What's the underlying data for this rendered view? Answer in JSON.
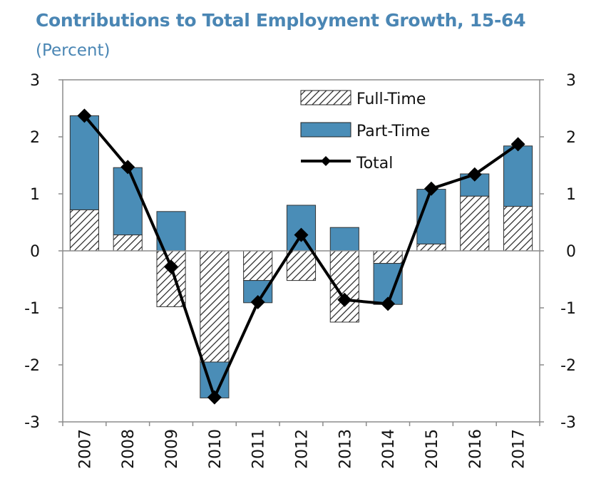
{
  "title": "Contributions to Total Employment Growth, 15-64",
  "subtitle": "(Percent)",
  "colors": {
    "part_time": "#4a8db7",
    "full_time_hatch": "#222222",
    "total_line": "#000000",
    "title": "#4a86b4"
  },
  "chart_data": {
    "type": "bar",
    "stacked": true,
    "categories": [
      "2007",
      "2008",
      "2009",
      "2010",
      "2011",
      "2012",
      "2013",
      "2014",
      "2015",
      "2016",
      "2017"
    ],
    "series": [
      {
        "name": "Full-Time",
        "type": "bar",
        "pattern": "hatch",
        "values": [
          0.72,
          0.28,
          -0.98,
          -1.95,
          -0.52,
          -0.52,
          -1.25,
          -0.22,
          0.12,
          0.96,
          0.78
        ]
      },
      {
        "name": "Part-Time",
        "type": "bar",
        "values": [
          1.65,
          1.18,
          0.69,
          -0.63,
          -0.39,
          0.8,
          0.41,
          -0.72,
          0.96,
          0.39,
          1.06
        ]
      },
      {
        "name": "Total",
        "type": "line",
        "marker": "diamond",
        "values": [
          2.37,
          1.47,
          -0.28,
          -2.57,
          -0.9,
          0.28,
          -0.86,
          -0.93,
          1.09,
          1.34,
          1.87
        ]
      }
    ],
    "ylim": [
      -3,
      3
    ],
    "yticks": [
      "3",
      "2",
      "1",
      "0",
      "-1",
      "-2",
      "-3"
    ],
    "y2ticks": [
      "3",
      "2",
      "1",
      "0",
      "-1",
      "-2",
      "-3"
    ],
    "legend": {
      "placement": "top-center"
    },
    "grid": false
  }
}
